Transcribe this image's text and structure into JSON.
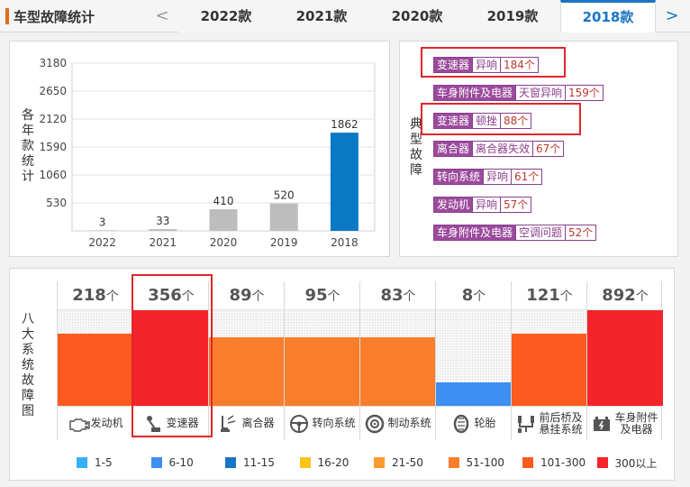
{
  "header": {
    "title": "车型故障统计",
    "prev_arrow": "<",
    "next_arrow": ">",
    "tabs": [
      {
        "label": "2022款",
        "active": false
      },
      {
        "label": "2021款",
        "active": false
      },
      {
        "label": "2020款",
        "active": false
      },
      {
        "label": "2019款",
        "active": false
      },
      {
        "label": "2018款",
        "active": true
      }
    ]
  },
  "chart_panel": {
    "ylabel": "各年款统计"
  },
  "chart_data": {
    "type": "bar",
    "categories": [
      "2022",
      "2021",
      "2020",
      "2019",
      "2018"
    ],
    "values": [
      3,
      33,
      410,
      520,
      1862
    ],
    "ylim": [
      0,
      3180
    ],
    "yticks": [
      530,
      1060,
      1590,
      2120,
      2650,
      3180
    ],
    "bar_colors": [
      "#bdbdbd",
      "#bdbdbd",
      "#bdbdbd",
      "#bdbdbd",
      "#0a79c5"
    ],
    "ylabel": "各年款统计",
    "grid": true
  },
  "faults_panel": {
    "label": "典型故障",
    "items": [
      {
        "system": "变速器",
        "type": "异响",
        "count": "184个"
      },
      {
        "system": "车身附件及电器",
        "type": "天窗异响",
        "count": "159个"
      },
      {
        "system": "变速器",
        "type": "顿挫",
        "count": "88个"
      },
      {
        "system": "离合器",
        "type": "离合器失效",
        "count": "67个"
      },
      {
        "system": "转向系统",
        "type": "异响",
        "count": "61个"
      },
      {
        "system": "发动机",
        "type": "异响",
        "count": "57个"
      },
      {
        "system": "车身附件及电器",
        "type": "空调问题",
        "count": "52个"
      }
    ]
  },
  "systems_panel": {
    "label": "八大系统故障图",
    "unit": "个",
    "max_scale": 356,
    "systems": [
      {
        "count": 218,
        "name": "发动机",
        "icon": "engine-icon",
        "color": "#fc5a1e"
      },
      {
        "count": 356,
        "name": "变速器",
        "icon": "gear-shift-icon",
        "color": "#f5242b"
      },
      {
        "count": 89,
        "name": "离合器",
        "icon": "clutch-icon",
        "color": "#fc7d2b"
      },
      {
        "count": 95,
        "name": "转向系统",
        "icon": "steering-wheel-icon",
        "color": "#fc7d2b"
      },
      {
        "count": 83,
        "name": "制动系统",
        "icon": "brake-disc-icon",
        "color": "#fc7d2b"
      },
      {
        "count": 8,
        "name": "轮胎",
        "icon": "tire-icon",
        "color": "#3d8ff2"
      },
      {
        "count": 121,
        "name": "前后桥及悬挂系统",
        "icon": "suspension-icon",
        "color": "#fc5a1e"
      },
      {
        "count": 892,
        "name": "车身附件及电器",
        "icon": "battery-icon",
        "color": "#f5242b"
      }
    ],
    "legend": [
      {
        "label": "1-5",
        "color": "#37b0fa"
      },
      {
        "label": "6-10",
        "color": "#3d8ff2"
      },
      {
        "label": "11-15",
        "color": "#1676c5"
      },
      {
        "label": "16-20",
        "color": "#f9c51b"
      },
      {
        "label": "21-50",
        "color": "#fc9a30"
      },
      {
        "label": "51-100",
        "color": "#fc7d2b"
      },
      {
        "label": "101-300",
        "color": "#fc5a1e"
      },
      {
        "label": "300以上",
        "color": "#f5242b"
      }
    ]
  }
}
